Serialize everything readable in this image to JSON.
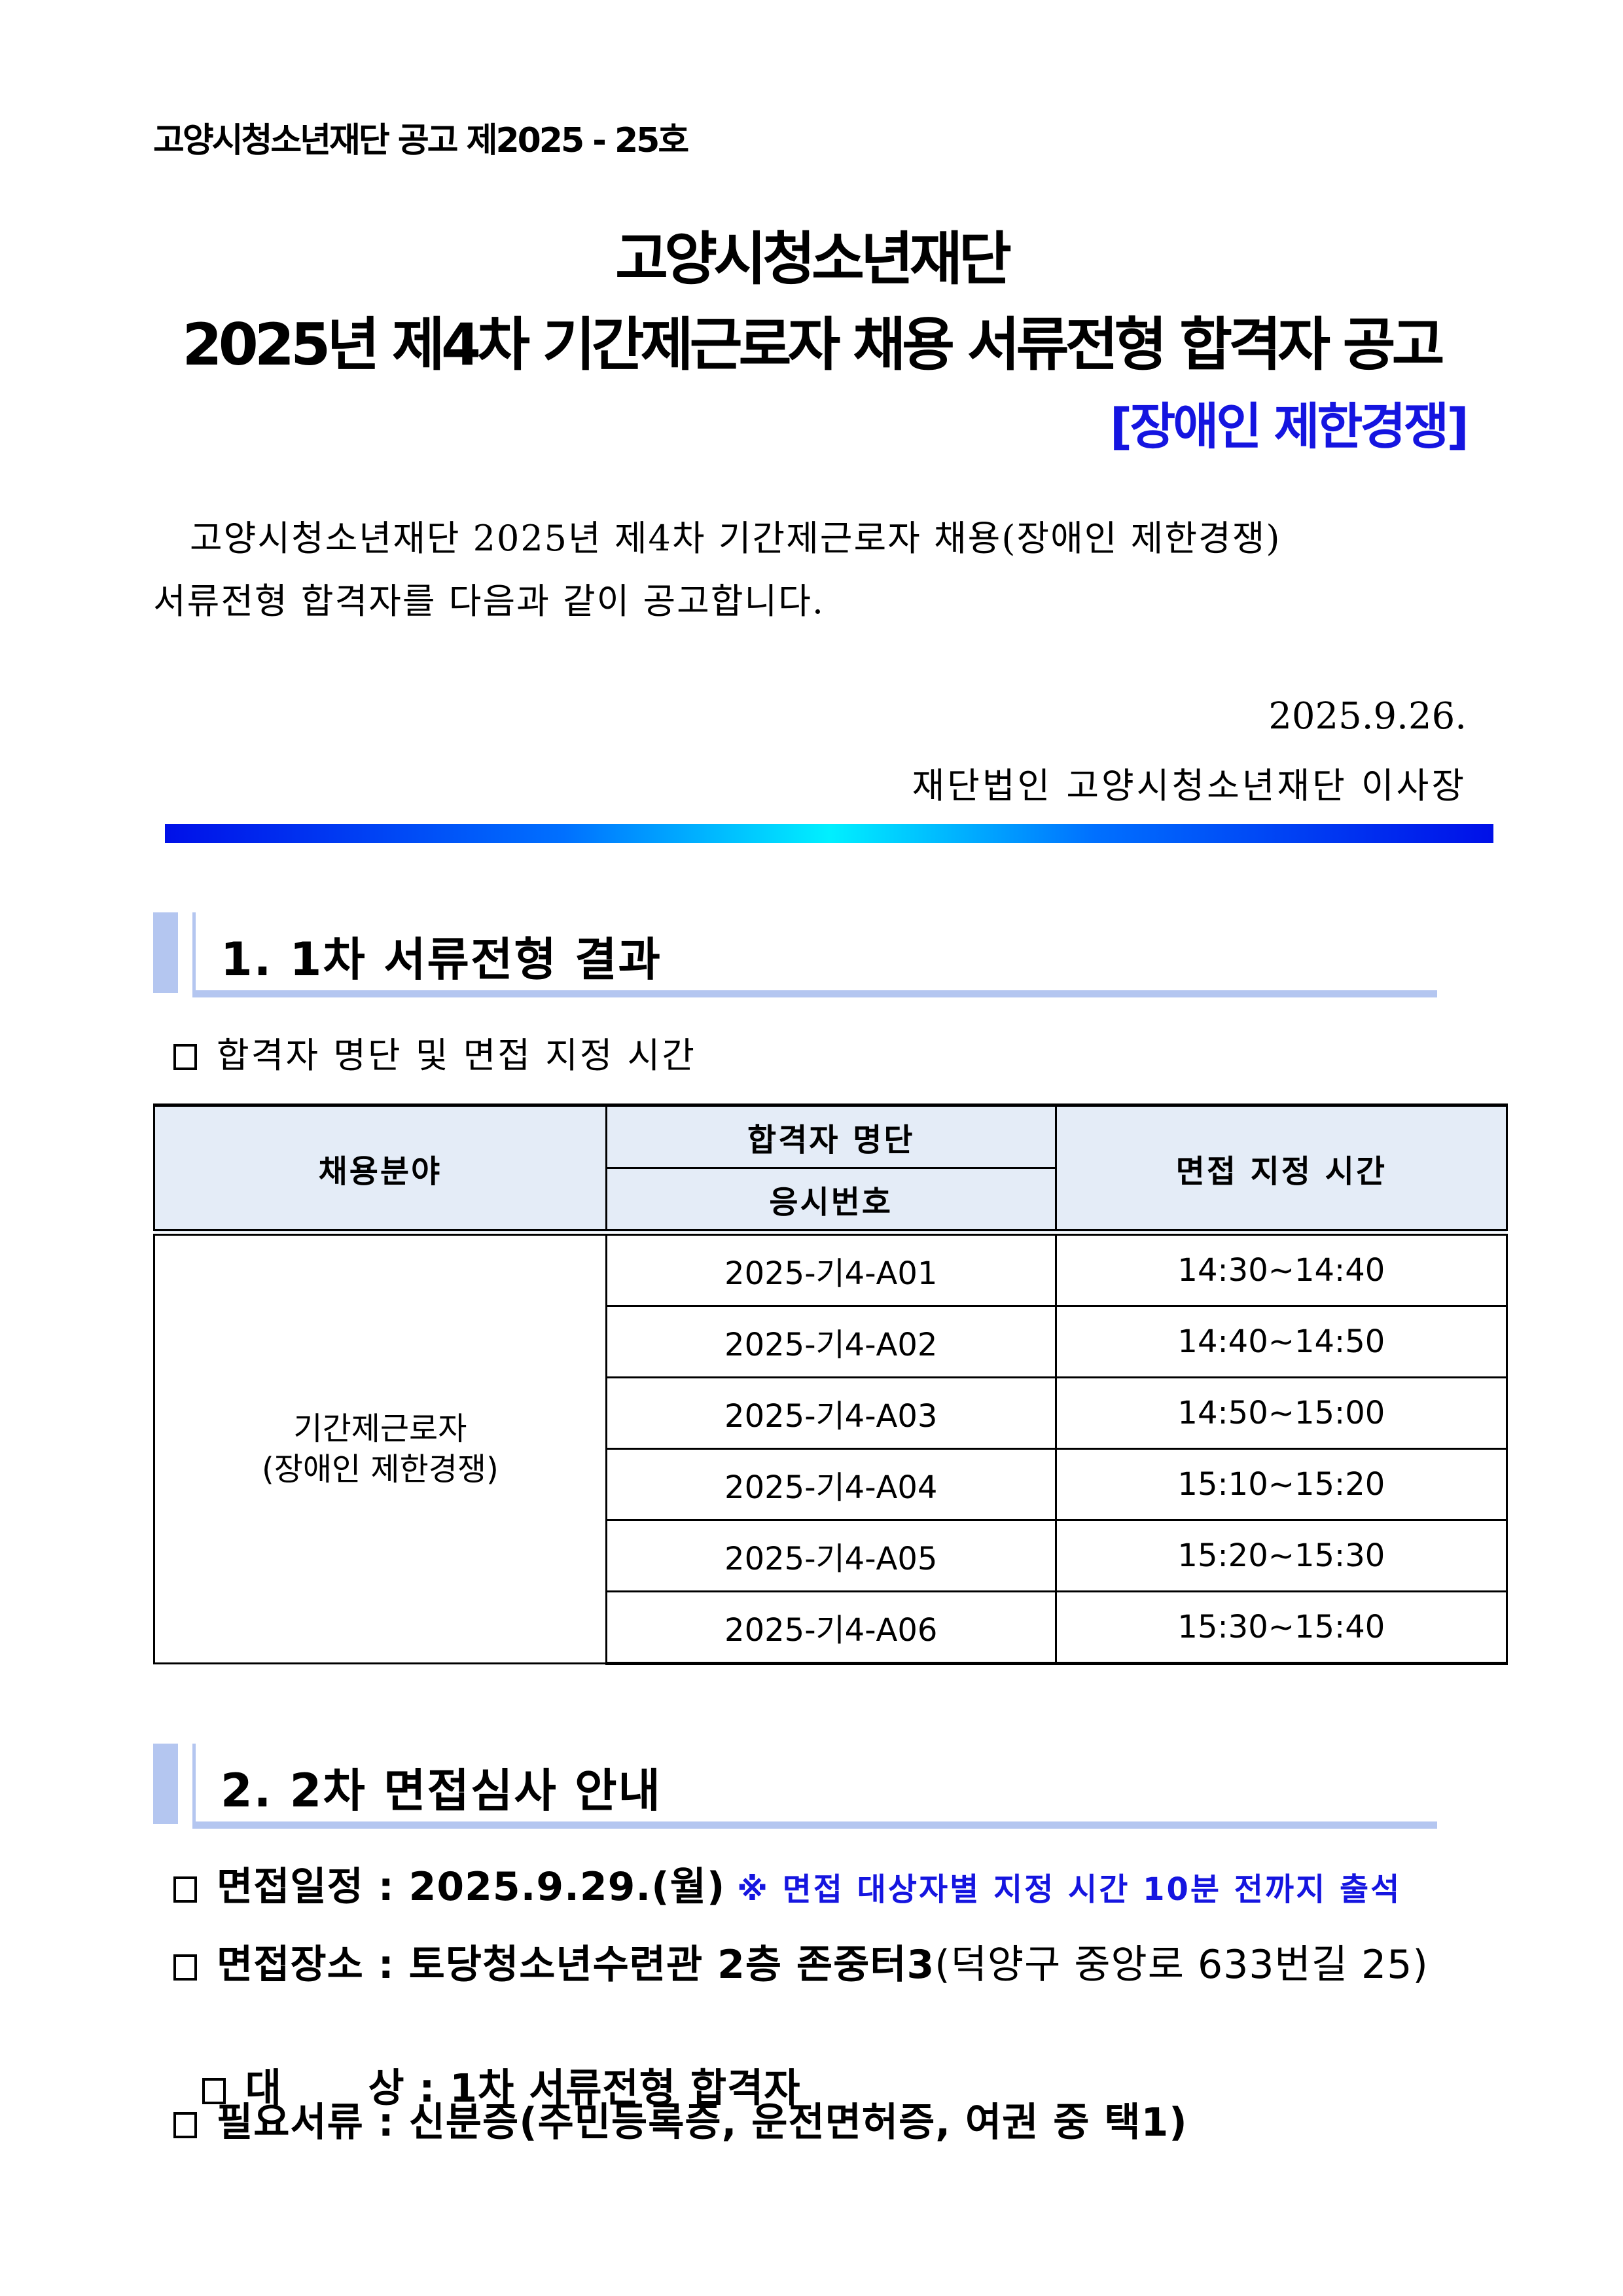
{
  "notice_number": "고양시청소년재단 공고 제2025 - 25호",
  "title": {
    "line1": "고양시청소년재단",
    "line2": "2025년 제4차 기간제근로자 채용 서류전형 합격자 공고",
    "subtitle": "[장애인 제한경쟁]"
  },
  "intro": {
    "line1": "고양시청소년재단 2025년 제4차 기간제근로자 채용(장애인 제한경쟁)",
    "line2": "서류전형 합격자를 다음과 같이 공고합니다."
  },
  "date": "2025.9.26.",
  "signature": "재단법인 고양시청소년재단 이사장",
  "section1": {
    "title": "1. 1차 서류전형 결과",
    "subtitle": "합격자 명단 및 면접 지정 시간",
    "table": {
      "headers": {
        "field": "채용분야",
        "passers": "합격자 명단",
        "exam_no": "응시번호",
        "time": "면접 지정 시간"
      },
      "field_value_line1": "기간제근로자",
      "field_value_line2": "(장애인 제한경쟁)",
      "rows": [
        {
          "exam_no": "2025-기4-A01",
          "time": "14:30~14:40"
        },
        {
          "exam_no": "2025-기4-A02",
          "time": "14:40~14:50"
        },
        {
          "exam_no": "2025-기4-A03",
          "time": "14:50~15:00"
        },
        {
          "exam_no": "2025-기4-A04",
          "time": "15:10~15:20"
        },
        {
          "exam_no": "2025-기4-A05",
          "time": "15:20~15:30"
        },
        {
          "exam_no": "2025-기4-A06",
          "time": "15:30~15:40"
        }
      ]
    }
  },
  "section2": {
    "title": "2. 2차 면접심사 안내",
    "items": [
      {
        "label": "면접일정",
        "value": "2025.9.29.(월)",
        "note": "※ 면접 대상자별 지정 시간 10분 전까지 출석"
      },
      {
        "label": "면접장소",
        "value": "토당청소년수련관 2층 존중터3",
        "extra": "(덕양구 중앙로 633번길 25)"
      },
      {
        "label": "대      상",
        "value": "1차 서류전형 합격자"
      },
      {
        "label": "필요서류",
        "value": "신분증(주민등록증, 운전면허증, 여권 중 택1)"
      }
    ]
  },
  "colors": {
    "accent_blue": "#1515e0",
    "section_bar": "#b4c6f0",
    "table_header_bg": "#e4ecf7"
  }
}
